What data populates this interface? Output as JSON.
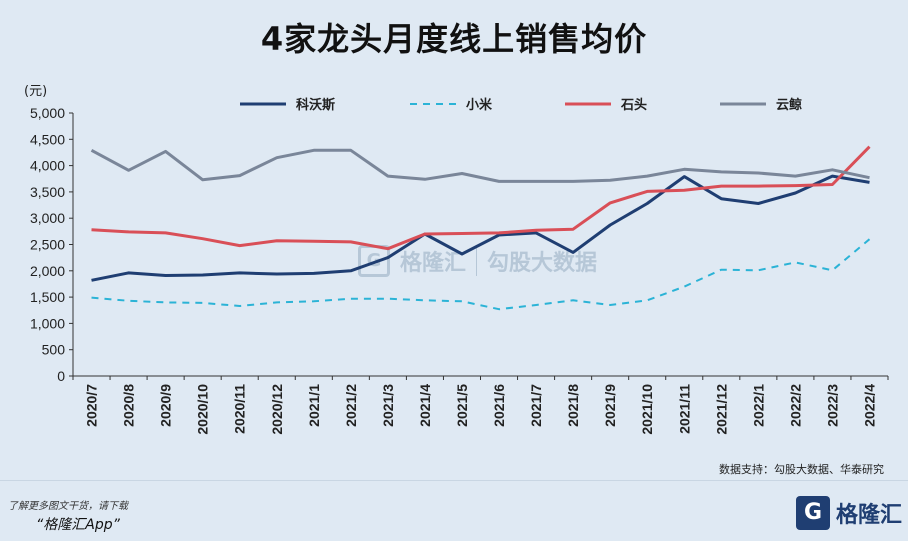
{
  "title": "4家龙头月度线上销售均价",
  "unit_label": "(元)",
  "source": "数据支持：勾股大数据、华泰研究",
  "footer": {
    "note": "了解更多图文干货，请下载",
    "app": "“格隆汇App”",
    "logo_text": "格隆汇",
    "logo_mark": "G"
  },
  "watermark": {
    "brand": "格隆汇",
    "mark": "G",
    "partner": "勾股大数据"
  },
  "chart_data": {
    "type": "line",
    "categories": [
      "2020/7",
      "2020/8",
      "2020/9",
      "2020/10",
      "2020/11",
      "2020/12",
      "2021/1",
      "2021/2",
      "2021/3",
      "2021/4",
      "2021/5",
      "2021/6",
      "2021/7",
      "2021/8",
      "2021/9",
      "2021/10",
      "2021/11",
      "2021/12",
      "2022/1",
      "2022/2",
      "2022/3",
      "2022/4"
    ],
    "ylim": [
      0,
      5000
    ],
    "yticks": [
      0,
      500,
      1000,
      1500,
      2000,
      2500,
      3000,
      3500,
      4000,
      4500,
      5000
    ],
    "ytick_labels": [
      "0",
      "500",
      "1,000",
      "1,500",
      "2,000",
      "2,500",
      "3,000",
      "3,500",
      "4,000",
      "4,500",
      "5,000"
    ],
    "legend_position": "top",
    "series": [
      {
        "name": "科沃斯",
        "color": "#1f3e72",
        "dash": "solid",
        "values": [
          1820,
          1960,
          1910,
          1920,
          1960,
          1940,
          1950,
          2000,
          2250,
          2700,
          2320,
          2680,
          2720,
          2350,
          2870,
          3280,
          3790,
          3370,
          3280,
          3480,
          3800,
          3680
        ]
      },
      {
        "name": "小米",
        "color": "#2bb3d6",
        "dash": "dashed",
        "values": [
          1490,
          1430,
          1400,
          1390,
          1330,
          1400,
          1420,
          1470,
          1470,
          1440,
          1420,
          1270,
          1350,
          1440,
          1350,
          1440,
          1700,
          2020,
          2010,
          2160,
          2010,
          2600
        ]
      },
      {
        "name": "石头",
        "color": "#d94f57",
        "dash": "solid",
        "values": [
          2780,
          2740,
          2720,
          2610,
          2480,
          2570,
          2560,
          2550,
          2420,
          2700,
          2710,
          2720,
          2770,
          2790,
          3290,
          3510,
          3530,
          3610,
          3610,
          3620,
          3640,
          4360
        ]
      },
      {
        "name": "云鲸",
        "color": "#7a8699",
        "dash": "solid",
        "values": [
          4290,
          3910,
          4270,
          3730,
          3810,
          4150,
          4290,
          4290,
          3800,
          3740,
          3850,
          3700,
          3700,
          3700,
          3720,
          3800,
          3930,
          3880,
          3860,
          3800,
          3920,
          3770
        ]
      }
    ]
  }
}
